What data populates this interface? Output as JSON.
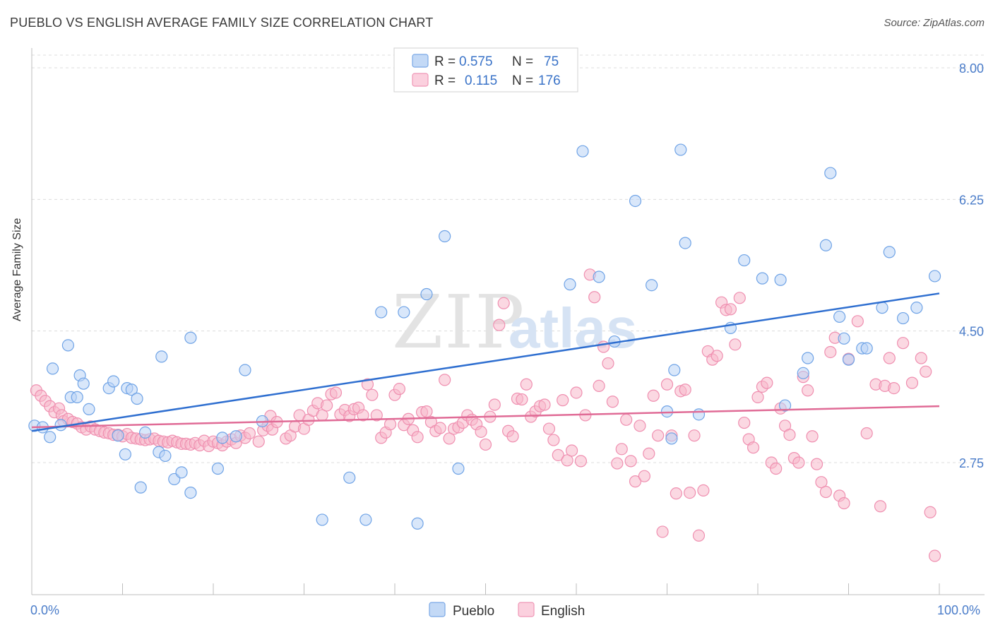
{
  "header": {
    "title": "PUEBLO VS ENGLISH AVERAGE FAMILY SIZE CORRELATION CHART",
    "source": "Source: ZipAtlas.com"
  },
  "watermark": {
    "zip": "ZIP",
    "atlas": "atlas"
  },
  "legend_top": {
    "rows": [
      {
        "r_label": "R =",
        "r_value": "0.575",
        "n_label": "N =",
        "n_value": "75",
        "color": "#a9c8f2"
      },
      {
        "r_label": "R =",
        "r_value": "0.115",
        "n_label": "N =",
        "n_value": "176",
        "color": "#f7b8cb"
      }
    ]
  },
  "legend_bottom": {
    "items": [
      {
        "label": "Pueblo",
        "color": "#a9c8f2"
      },
      {
        "label": "English",
        "color": "#f7b8cb"
      }
    ]
  },
  "colors": {
    "pueblo": "#6fa3e6",
    "pueblo_line": "#2f6fd0",
    "english": "#ef8fb0",
    "english_line": "#e06b96",
    "axis_text": "#4a7cc9"
  },
  "chart_data": {
    "type": "scatter",
    "title": "PUEBLO VS ENGLISH AVERAGE FAMILY SIZE CORRELATION CHART",
    "xlabel": "",
    "ylabel": "Average Family Size",
    "xlim": [
      0,
      100
    ],
    "ylim": [
      1.35,
      8.2
    ],
    "x_tick_labels": [
      "0.0%",
      "100.0%"
    ],
    "y_ticks": [
      2.75,
      4.5,
      6.25,
      8.0
    ],
    "y_tick_labels": [
      "2.75",
      "4.50",
      "6.25",
      "8.00"
    ],
    "grid": "horizontal dashed",
    "legend_position": "top-center and bottom",
    "series": [
      {
        "name": "Pueblo",
        "trend": {
          "x": [
            0,
            100
          ],
          "y": [
            3.17,
            5.0
          ]
        },
        "points": [
          [
            0.3,
            3.24
          ],
          [
            1.2,
            3.22
          ],
          [
            2,
            3.09
          ],
          [
            2.3,
            4.0
          ],
          [
            3.2,
            3.25
          ],
          [
            4,
            4.31
          ],
          [
            4.3,
            3.62
          ],
          [
            5,
            3.62
          ],
          [
            5.3,
            3.91
          ],
          [
            5.7,
            3.8
          ],
          [
            6.3,
            3.46
          ],
          [
            8.5,
            3.74
          ],
          [
            9,
            3.83
          ],
          [
            9.5,
            3.11
          ],
          [
            10.3,
            2.86
          ],
          [
            10.5,
            3.74
          ],
          [
            11,
            3.72
          ],
          [
            11.6,
            3.6
          ],
          [
            12,
            2.42
          ],
          [
            12.5,
            3.15
          ],
          [
            14,
            2.89
          ],
          [
            14.3,
            4.16
          ],
          [
            14.7,
            2.84
          ],
          [
            15.7,
            2.53
          ],
          [
            16.5,
            2.62
          ],
          [
            17.5,
            2.35
          ],
          [
            17.5,
            4.41
          ],
          [
            20.5,
            2.67
          ],
          [
            21,
            3.08
          ],
          [
            22.5,
            3.1
          ],
          [
            23.5,
            3.98
          ],
          [
            25.4,
            3.3
          ],
          [
            32,
            1.99
          ],
          [
            35,
            2.55
          ],
          [
            36.8,
            1.99
          ],
          [
            38.5,
            4.75
          ],
          [
            41,
            4.75
          ],
          [
            42.5,
            1.94
          ],
          [
            43.5,
            4.99
          ],
          [
            45.5,
            5.76
          ],
          [
            47,
            2.67
          ],
          [
            59.3,
            5.12
          ],
          [
            60.7,
            6.89
          ],
          [
            62.5,
            5.22
          ],
          [
            64.2,
            4.36
          ],
          [
            66.5,
            6.23
          ],
          [
            68.3,
            5.11
          ],
          [
            70,
            3.43
          ],
          [
            70.5,
            3.07
          ],
          [
            70.8,
            3.98
          ],
          [
            71.5,
            6.91
          ],
          [
            72,
            5.67
          ],
          [
            73.5,
            3.39
          ],
          [
            77,
            4.54
          ],
          [
            78.5,
            5.44
          ],
          [
            80.5,
            5.2
          ],
          [
            82.5,
            5.18
          ],
          [
            83,
            3.51
          ],
          [
            85,
            3.94
          ],
          [
            85.5,
            4.14
          ],
          [
            87.5,
            5.64
          ],
          [
            88,
            6.6
          ],
          [
            89,
            4.69
          ],
          [
            89.5,
            4.4
          ],
          [
            90,
            4.12
          ],
          [
            91.5,
            4.27
          ],
          [
            92,
            4.27
          ],
          [
            93.7,
            4.81
          ],
          [
            94.5,
            5.55
          ],
          [
            96,
            4.67
          ],
          [
            97.5,
            4.81
          ],
          [
            99.5,
            5.23
          ]
        ]
      },
      {
        "name": "English",
        "trend": {
          "x": [
            0,
            100
          ],
          "y": [
            3.22,
            3.5
          ]
        },
        "points": [
          [
            0.5,
            3.71
          ],
          [
            1,
            3.64
          ],
          [
            1.5,
            3.57
          ],
          [
            2,
            3.5
          ],
          [
            2.5,
            3.42
          ],
          [
            3,
            3.47
          ],
          [
            3.3,
            3.38
          ],
          [
            3.5,
            3.3
          ],
          [
            4,
            3.33
          ],
          [
            4.5,
            3.29
          ],
          [
            5,
            3.27
          ],
          [
            5.5,
            3.22
          ],
          [
            6,
            3.19
          ],
          [
            6.5,
            3.23
          ],
          [
            7,
            3.19
          ],
          [
            7.5,
            3.17
          ],
          [
            8,
            3.15
          ],
          [
            8.5,
            3.14
          ],
          [
            9,
            3.12
          ],
          [
            9.5,
            3.12
          ],
          [
            10,
            3.1
          ],
          [
            10.5,
            3.13
          ],
          [
            11,
            3.08
          ],
          [
            11.5,
            3.07
          ],
          [
            12,
            3.06
          ],
          [
            12.5,
            3.05
          ],
          [
            13,
            3.06
          ],
          [
            13.5,
            3.07
          ],
          [
            14,
            3.04
          ],
          [
            14.5,
            3.03
          ],
          [
            15,
            3.02
          ],
          [
            15.5,
            3.04
          ],
          [
            16,
            3.02
          ],
          [
            16.5,
            3.0
          ],
          [
            17,
            3.0
          ],
          [
            17.5,
            2.99
          ],
          [
            18,
            3.01
          ],
          [
            18.5,
            2.98
          ],
          [
            19,
            3.04
          ],
          [
            19.5,
            2.97
          ],
          [
            20,
            3.03
          ],
          [
            20.5,
            3.01
          ],
          [
            21,
            2.98
          ],
          [
            21.5,
            3.03
          ],
          [
            22,
            3.06
          ],
          [
            22.5,
            3.01
          ],
          [
            23,
            3.11
          ],
          [
            23.5,
            3.08
          ],
          [
            24,
            3.14
          ],
          [
            25,
            3.03
          ],
          [
            25.5,
            3.18
          ],
          [
            26,
            3.24
          ],
          [
            26.3,
            3.37
          ],
          [
            26.5,
            3.19
          ],
          [
            27,
            3.29
          ],
          [
            28,
            3.07
          ],
          [
            28.5,
            3.11
          ],
          [
            29,
            3.23
          ],
          [
            29.5,
            3.38
          ],
          [
            30,
            3.2
          ],
          [
            30.5,
            3.32
          ],
          [
            31,
            3.44
          ],
          [
            31.5,
            3.54
          ],
          [
            32,
            3.38
          ],
          [
            32.5,
            3.51
          ],
          [
            33,
            3.66
          ],
          [
            33.5,
            3.68
          ],
          [
            34,
            3.39
          ],
          [
            34.5,
            3.45
          ],
          [
            35,
            3.37
          ],
          [
            35.5,
            3.46
          ],
          [
            36,
            3.48
          ],
          [
            36.5,
            3.38
          ],
          [
            37,
            3.79
          ],
          [
            37.5,
            3.65
          ],
          [
            38,
            3.38
          ],
          [
            38.5,
            3.08
          ],
          [
            39,
            3.15
          ],
          [
            39.5,
            3.26
          ],
          [
            40,
            3.65
          ],
          [
            40.5,
            3.73
          ],
          [
            41,
            3.25
          ],
          [
            41.5,
            3.33
          ],
          [
            42,
            3.18
          ],
          [
            42.5,
            3.09
          ],
          [
            43,
            3.42
          ],
          [
            43.5,
            3.43
          ],
          [
            44,
            3.29
          ],
          [
            44.5,
            3.17
          ],
          [
            45,
            3.21
          ],
          [
            45.5,
            3.85
          ],
          [
            46,
            3.07
          ],
          [
            46.5,
            3.2
          ],
          [
            47,
            3.22
          ],
          [
            47.5,
            3.28
          ],
          [
            48,
            3.38
          ],
          [
            48.5,
            3.32
          ],
          [
            49,
            3.26
          ],
          [
            49.5,
            3.16
          ],
          [
            50,
            2.99
          ],
          [
            50.5,
            3.36
          ],
          [
            51,
            3.52
          ],
          [
            51.5,
            4.58
          ],
          [
            52,
            4.87
          ],
          [
            52.5,
            3.17
          ],
          [
            53,
            3.1
          ],
          [
            53.5,
            3.6
          ],
          [
            54,
            3.59
          ],
          [
            54.5,
            3.79
          ],
          [
            55,
            3.36
          ],
          [
            55.5,
            3.43
          ],
          [
            56,
            3.5
          ],
          [
            56.5,
            3.52
          ],
          [
            57,
            3.2
          ],
          [
            57.5,
            3.05
          ],
          [
            58,
            2.85
          ],
          [
            58.5,
            3.58
          ],
          [
            59,
            2.78
          ],
          [
            59.5,
            2.91
          ],
          [
            60,
            3.68
          ],
          [
            60.5,
            2.77
          ],
          [
            61,
            3.38
          ],
          [
            61.5,
            5.25
          ],
          [
            62,
            4.95
          ],
          [
            62.5,
            3.77
          ],
          [
            63,
            4.29
          ],
          [
            63.5,
            4.07
          ],
          [
            64,
            3.56
          ],
          [
            64.5,
            2.74
          ],
          [
            65,
            2.93
          ],
          [
            65.5,
            3.32
          ],
          [
            66,
            2.77
          ],
          [
            66.5,
            2.5
          ],
          [
            67,
            3.24
          ],
          [
            67.5,
            2.57
          ],
          [
            68,
            2.87
          ],
          [
            68.5,
            3.64
          ],
          [
            69,
            3.11
          ],
          [
            69.5,
            1.83
          ],
          [
            70,
            3.79
          ],
          [
            70.5,
            3.11
          ],
          [
            71,
            2.34
          ],
          [
            71.5,
            3.7
          ],
          [
            72,
            3.72
          ],
          [
            72.5,
            2.35
          ],
          [
            73,
            3.11
          ],
          [
            73.5,
            1.78
          ],
          [
            74,
            2.38
          ],
          [
            74.5,
            4.23
          ],
          [
            75,
            4.12
          ],
          [
            75.5,
            4.17
          ],
          [
            76,
            4.88
          ],
          [
            76.5,
            4.78
          ],
          [
            77,
            4.79
          ],
          [
            77.5,
            4.32
          ],
          [
            78,
            4.94
          ],
          [
            78.5,
            3.28
          ],
          [
            79,
            3.06
          ],
          [
            79.5,
            2.95
          ],
          [
            80,
            3.62
          ],
          [
            80.5,
            3.76
          ],
          [
            81,
            3.81
          ],
          [
            81.5,
            2.75
          ],
          [
            82,
            2.67
          ],
          [
            82.5,
            3.47
          ],
          [
            83,
            3.24
          ],
          [
            83.5,
            3.12
          ],
          [
            84,
            2.81
          ],
          [
            84.5,
            2.75
          ],
          [
            85,
            3.89
          ],
          [
            85.5,
            3.71
          ],
          [
            86,
            3.1
          ],
          [
            86.5,
            2.73
          ],
          [
            87,
            2.49
          ],
          [
            87.5,
            2.36
          ],
          [
            88,
            4.22
          ],
          [
            88.5,
            4.41
          ],
          [
            89,
            2.31
          ],
          [
            89.5,
            2.21
          ],
          [
            90,
            4.13
          ],
          [
            91,
            4.63
          ],
          [
            92,
            3.14
          ],
          [
            93,
            3.79
          ],
          [
            93.5,
            2.17
          ],
          [
            94,
            3.77
          ],
          [
            94.5,
            4.14
          ],
          [
            95,
            3.74
          ],
          [
            96,
            4.34
          ],
          [
            97,
            3.81
          ],
          [
            98,
            4.14
          ],
          [
            98.5,
            3.96
          ],
          [
            99,
            2.09
          ],
          [
            99.5,
            1.51
          ]
        ]
      }
    ]
  }
}
